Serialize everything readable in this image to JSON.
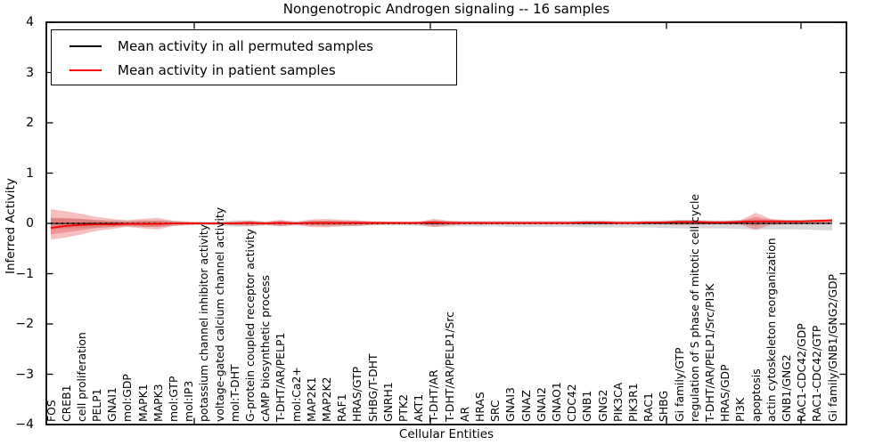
{
  "chart_data": {
    "type": "line",
    "title": "Nongenotropic Androgen signaling -- 16 samples",
    "xlabel": "Cellular Entities",
    "ylabel": "Inferred Activity",
    "ylim": [
      -4,
      4
    ],
    "yticks": [
      4,
      3,
      2,
      1,
      0,
      -1,
      -2,
      -3,
      -4
    ],
    "ytick_labels": [
      "4",
      "3",
      "2",
      "1",
      "0",
      "−1",
      "−2",
      "−3",
      "−4"
    ],
    "grid": false,
    "legend_position": "upper left",
    "categories": [
      "FOS",
      "CREB1",
      "cell proliferation",
      "PELP1",
      "GNAI1",
      "mol:GDP",
      "MAPK1",
      "MAPK3",
      "mol:GTP",
      "mol:IP3",
      "potassium channel inhibitor activity",
      "voltage-gated calcium channel activity",
      "mol:T-DHT",
      "G-protein coupled receptor activity",
      "cAMP biosynthetic process",
      "T-DHT/AR/PELP1",
      "mol:Ca2+",
      "MAP2K1",
      "MAP2K2",
      "RAF1",
      "HRAS/GTP",
      "SHBG/T-DHT",
      "GNRH1",
      "PTK2",
      "AKT1",
      "T-DHT/AR",
      "T-DHT/AR/PELP1/Src",
      "AR",
      "HRAS",
      "SRC",
      "GNAI3",
      "GNAZ",
      "GNAI2",
      "GNAO1",
      "CDC42",
      "GNB1",
      "GNG2",
      "PIK3CA",
      "PIK3R1",
      "RAC1",
      "SHBG",
      "Gi family/GTP",
      "regulation of S phase of mitotic cell cycle",
      "T-DHT/AR/PELP1/Src/PI3K",
      "HRAS/GDP",
      "PI3K",
      "apoptosis",
      "actin cytoskeleton reorganization",
      "GNB1/GNG2",
      "RAC1-CDC42/GDP",
      "RAC1-CDC42/GTP",
      "Gi family/GNB1/GNG2/GDP"
    ],
    "series": [
      {
        "name": "Mean activity in all permuted samples",
        "color": "#000000",
        "style": "solid with dotted overlay",
        "values": [
          0,
          0,
          0,
          0,
          0,
          0,
          0,
          0,
          0,
          0,
          0,
          0,
          0,
          0,
          0,
          0,
          0,
          0,
          0,
          0,
          0,
          0,
          0,
          0,
          0,
          0,
          0,
          0,
          0,
          0,
          0,
          0,
          0,
          0,
          0,
          0,
          0,
          0,
          0,
          0,
          0,
          0,
          0,
          0,
          0,
          0,
          0,
          0,
          0,
          0,
          0,
          0
        ]
      },
      {
        "name": "Mean activity in patient samples",
        "color": "#ff0000",
        "style": "solid",
        "values": [
          -0.09,
          -0.05,
          -0.03,
          -0.02,
          -0.02,
          -0.01,
          -0.01,
          -0.01,
          0,
          0,
          0,
          0,
          0,
          0.01,
          0,
          0.01,
          0,
          0.01,
          0.01,
          0.01,
          0.01,
          0.01,
          0.01,
          0.01,
          0.01,
          0.02,
          0.01,
          0.01,
          0.01,
          0.01,
          0.01,
          0.01,
          0.01,
          0.01,
          0.01,
          0.02,
          0.02,
          0.01,
          0.01,
          0.02,
          0.02,
          0.03,
          0.03,
          0.02,
          0.02,
          0.03,
          0.04,
          0.04,
          0.04,
          0.04,
          0.05,
          0.06
        ]
      }
    ],
    "bands": [
      {
        "name": "permuted samples spread",
        "color": "#a8a8a8",
        "opacity": 0.45,
        "hi": [
          0.1,
          0.09,
          0.08,
          0.07,
          0.06,
          0.06,
          0.06,
          0.06,
          0.05,
          0.04,
          0.03,
          0.03,
          0.06,
          0.06,
          0.04,
          0.05,
          0.04,
          0.05,
          0.05,
          0.05,
          0.05,
          0.04,
          0.04,
          0.04,
          0.04,
          0.06,
          0.05,
          0.05,
          0.05,
          0.05,
          0.05,
          0.05,
          0.05,
          0.05,
          0.05,
          0.06,
          0.06,
          0.05,
          0.05,
          0.06,
          0.06,
          0.07,
          0.07,
          0.06,
          0.06,
          0.07,
          0.08,
          0.08,
          0.07,
          0.07,
          0.08,
          0.08
        ],
        "lo": [
          -0.12,
          -0.1,
          -0.09,
          -0.08,
          -0.07,
          -0.06,
          -0.07,
          -0.07,
          -0.05,
          -0.04,
          -0.03,
          -0.04,
          -0.06,
          -0.06,
          -0.04,
          -0.05,
          -0.04,
          -0.05,
          -0.05,
          -0.05,
          -0.05,
          -0.04,
          -0.04,
          -0.04,
          -0.05,
          -0.07,
          -0.06,
          -0.06,
          -0.06,
          -0.06,
          -0.07,
          -0.07,
          -0.07,
          -0.07,
          -0.07,
          -0.08,
          -0.08,
          -0.08,
          -0.08,
          -0.08,
          -0.09,
          -0.1,
          -0.1,
          -0.1,
          -0.1,
          -0.11,
          -0.12,
          -0.12,
          -0.12,
          -0.12,
          -0.13,
          -0.14
        ]
      },
      {
        "name": "patient samples spread",
        "color": "#e03030",
        "opacity": 0.3,
        "hi": [
          0.28,
          0.24,
          0.19,
          0.13,
          0.09,
          0.06,
          0.09,
          0.11,
          0.05,
          0.03,
          0.02,
          0.02,
          0.04,
          0.05,
          0.03,
          0.07,
          0.03,
          0.08,
          0.09,
          0.07,
          0.06,
          0.04,
          0.03,
          0.03,
          0.03,
          0.09,
          0.05,
          0.03,
          0.03,
          0.03,
          0.03,
          0.03,
          0.03,
          0.03,
          0.03,
          0.04,
          0.04,
          0.03,
          0.03,
          0.03,
          0.04,
          0.06,
          0.06,
          0.05,
          0.05,
          0.06,
          0.21,
          0.09,
          0.06,
          0.06,
          0.07,
          0.09
        ],
        "lo": [
          -0.32,
          -0.28,
          -0.22,
          -0.15,
          -0.11,
          -0.07,
          -0.1,
          -0.12,
          -0.05,
          -0.03,
          -0.02,
          -0.02,
          -0.04,
          -0.05,
          -0.03,
          -0.06,
          -0.03,
          -0.07,
          -0.08,
          -0.06,
          -0.05,
          -0.03,
          -0.02,
          -0.02,
          -0.02,
          -0.07,
          -0.04,
          -0.02,
          -0.02,
          -0.02,
          -0.02,
          -0.02,
          -0.02,
          -0.02,
          -0.02,
          -0.02,
          -0.02,
          -0.02,
          -0.02,
          -0.02,
          -0.02,
          -0.03,
          -0.03,
          -0.02,
          -0.02,
          -0.02,
          -0.13,
          -0.03,
          -0.02,
          -0.02,
          -0.01,
          -0.01
        ]
      }
    ]
  }
}
